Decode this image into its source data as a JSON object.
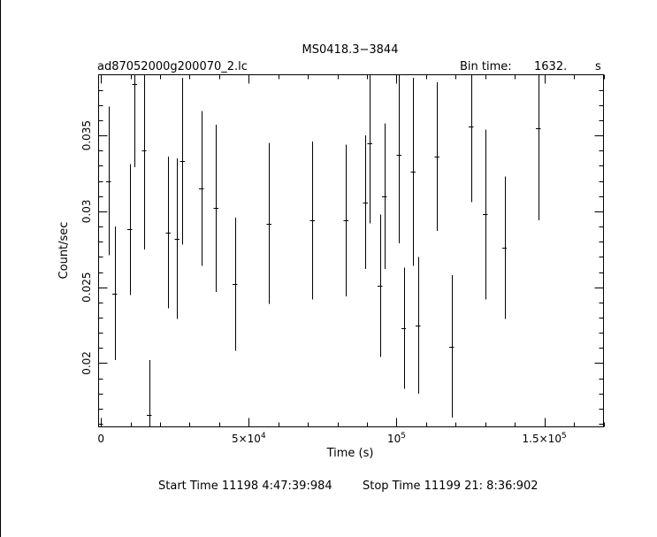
{
  "chart_data": {
    "type": "scatter",
    "title": "MS0418.3−3844",
    "subtitle_left": "ad87052000g200070_2.lc",
    "bin_time_label": "Bin time:",
    "bin_time_value": "1632.",
    "bin_time_unit": "s",
    "xlabel": "Time (s)",
    "ylabel": "Count/sec",
    "xlim": [
      -800,
      170000
    ],
    "ylim": [
      0.0158,
      0.039
    ],
    "x_ticks": [
      {
        "value": 0,
        "base": "0",
        "exp": ""
      },
      {
        "value": 50000,
        "base": "5×10",
        "exp": "4"
      },
      {
        "value": 100000,
        "base": "10",
        "exp": "5"
      },
      {
        "value": 150000,
        "base": "1.5×10",
        "exp": "5"
      }
    ],
    "y_ticks": [
      {
        "value": 0.02,
        "label": "0.02"
      },
      {
        "value": 0.025,
        "label": "0.025"
      },
      {
        "value": 0.03,
        "label": "0.03"
      },
      {
        "value": 0.035,
        "label": "0.035"
      }
    ],
    "grid": false,
    "series": [
      {
        "points": [
          {
            "x": 2500,
            "y": 0.032,
            "err": 0.0049
          },
          {
            "x": 4600,
            "y": 0.0246,
            "err": 0.0044
          },
          {
            "x": 9800,
            "y": 0.0288,
            "err": 0.0043
          },
          {
            "x": 11400,
            "y": 0.0384,
            "err": 0.0055
          },
          {
            "x": 14600,
            "y": 0.034,
            "err": 0.0065
          },
          {
            "x": 16300,
            "y": 0.0166,
            "err": 0.0036
          },
          {
            "x": 22700,
            "y": 0.0286,
            "err": 0.005
          },
          {
            "x": 25800,
            "y": 0.0282,
            "err": 0.0053
          },
          {
            "x": 27500,
            "y": 0.0333,
            "err": 0.0055
          },
          {
            "x": 34000,
            "y": 0.0315,
            "err": 0.0051
          },
          {
            "x": 38900,
            "y": 0.0302,
            "err": 0.0055
          },
          {
            "x": 45400,
            "y": 0.0252,
            "err": 0.0044
          },
          {
            "x": 56900,
            "y": 0.0292,
            "err": 0.0053
          },
          {
            "x": 71500,
            "y": 0.0294,
            "err": 0.0052
          },
          {
            "x": 82900,
            "y": 0.0294,
            "err": 0.005
          },
          {
            "x": 89400,
            "y": 0.0306,
            "err": 0.0044
          },
          {
            "x": 91000,
            "y": 0.0345,
            "err": 0.0053
          },
          {
            "x": 94400,
            "y": 0.0251,
            "err": 0.0047
          },
          {
            "x": 95900,
            "y": 0.031,
            "err": 0.0048
          },
          {
            "x": 100800,
            "y": 0.0337,
            "err": 0.0058
          },
          {
            "x": 102400,
            "y": 0.0223,
            "err": 0.004
          },
          {
            "x": 105600,
            "y": 0.0326,
            "err": 0.0062
          },
          {
            "x": 107300,
            "y": 0.0225,
            "err": 0.0045
          },
          {
            "x": 113700,
            "y": 0.0336,
            "err": 0.0049
          },
          {
            "x": 118600,
            "y": 0.0211,
            "err": 0.0047
          },
          {
            "x": 125200,
            "y": 0.0356,
            "err": 0.005
          },
          {
            "x": 130000,
            "y": 0.0298,
            "err": 0.0056
          },
          {
            "x": 136500,
            "y": 0.0276,
            "err": 0.0047
          },
          {
            "x": 147900,
            "y": 0.0355,
            "err": 0.0061
          }
        ],
        "x_half_width": 816
      }
    ]
  },
  "footer": {
    "start_time": "Start Time 11198  4:47:39:984",
    "stop_time": "Stop Time 11199 21: 8:36:902"
  }
}
